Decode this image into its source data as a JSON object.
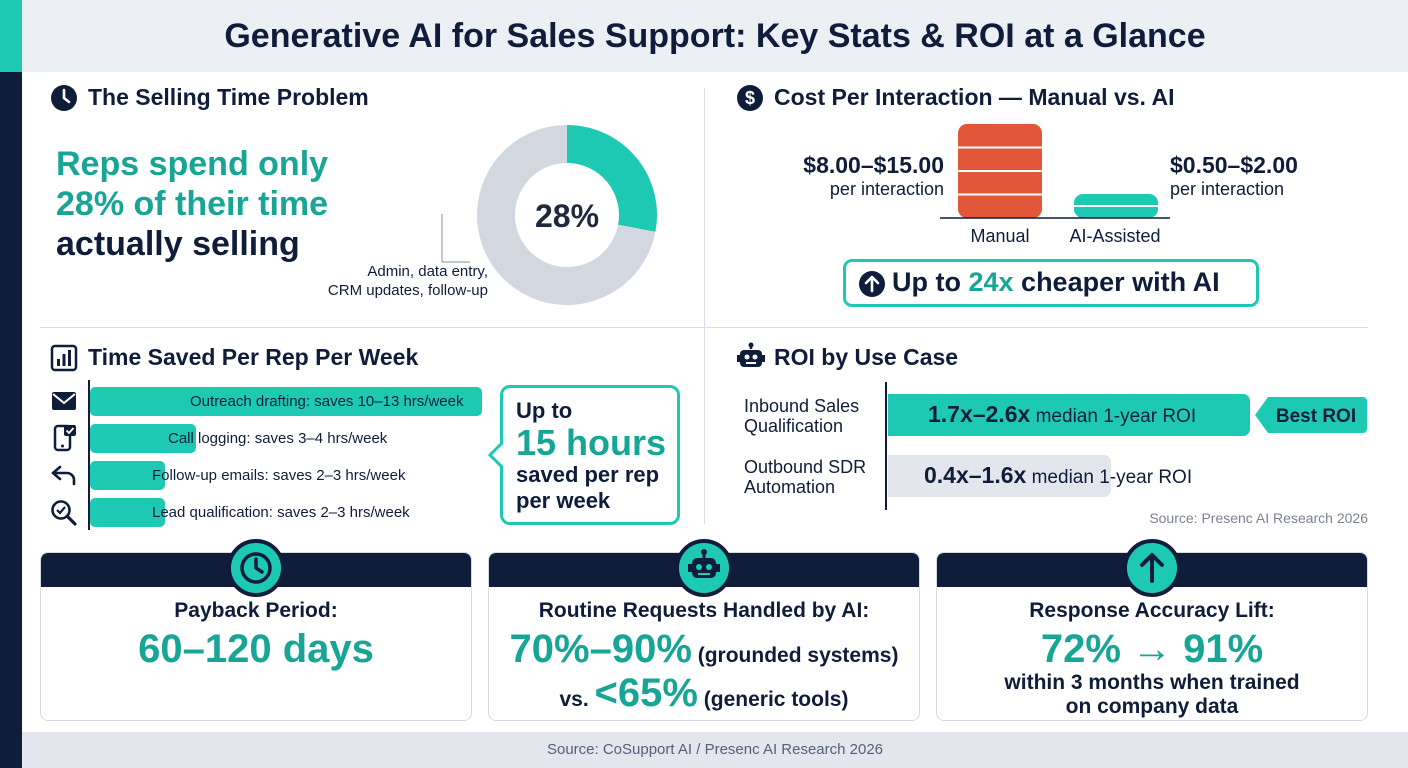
{
  "title": "Generative AI for Sales Support: Key Stats & ROI at a Glance",
  "selling_time": {
    "title": "The Selling Time Problem",
    "headline_line1": "Reps spend only",
    "headline_line2": "28% of their time",
    "headline_line3": "actually selling",
    "percent_label": "28%",
    "annotation_line1": "Admin, data entry,",
    "annotation_line2": "CRM updates, follow-up",
    "chart_data": {
      "type": "pie",
      "slices": [
        {
          "label": "Selling",
          "value": 28
        },
        {
          "label": "Admin, data entry, CRM updates, follow-up",
          "value": 72
        }
      ],
      "colors": [
        "#1ec9b4",
        "#d3d7df"
      ]
    }
  },
  "cost": {
    "title": "Cost Per Interaction — Manual vs. AI",
    "manual_value": "$8.00–$15.00",
    "manual_unit": "per interaction",
    "ai_value": "$0.50–$2.00",
    "ai_unit": "per interaction",
    "manual_label": "Manual",
    "ai_label": "AI-Assisted",
    "callout_pre": "Up to ",
    "callout_highlight": "24x",
    "callout_post": " cheaper with AI",
    "chart_data": {
      "type": "bar",
      "categories": [
        "Manual",
        "AI-Assisted"
      ],
      "ranges": [
        [
          8.0,
          15.0
        ],
        [
          0.5,
          2.0
        ]
      ],
      "colors": [
        "#e2573a",
        "#1ec9b4"
      ]
    }
  },
  "time_saved": {
    "title": "Time Saved Per Rep Per Week",
    "callout_line1": "Up to",
    "callout_line2": "15 hours",
    "callout_line3": "saved per rep",
    "callout_line4": "per week",
    "chart_data": {
      "type": "bar",
      "orientation": "horizontal",
      "categories": [
        "Outreach drafting: saves 10–13 hrs/week",
        "Call logging: saves 3–4 hrs/week",
        "Follow-up emails: saves 2–3 hrs/week",
        "Lead qualification: saves 2–3 hrs/week"
      ],
      "values": [
        13,
        3.5,
        2.5,
        2.5
      ],
      "icons": [
        "envelope-icon",
        "phone-check-icon",
        "reply-arrow-icon",
        "magnifier-check-icon"
      ]
    }
  },
  "roi": {
    "title": "ROI by Use Case",
    "row1_label_line1": "Inbound Sales",
    "row1_label_line2": "Qualification",
    "row1_value": "1.7x–2.6x",
    "row1_suffix": " median 1-year ROI",
    "row2_label_line1": "Outbound SDR",
    "row2_label_line2": "Automation",
    "row2_value": "0.4x–1.6x",
    "row2_suffix": " median 1-year ROI",
    "badge": "Best ROI",
    "source": "Source: Presenc AI Research 2026",
    "chart_data": {
      "type": "bar",
      "orientation": "horizontal",
      "categories": [
        "Inbound Sales Qualification",
        "Outbound SDR Automation"
      ],
      "ranges": [
        [
          1.7,
          2.6
        ],
        [
          0.4,
          1.6
        ]
      ],
      "colors": [
        "#1ec9b4",
        "#e3e6ec"
      ]
    }
  },
  "cards": {
    "payback_label": "Payback Period:",
    "payback_value": "60–120 days",
    "routine_label": "Routine Requests Handled by AI:",
    "routine_value1": "70%–90%",
    "routine_note1": " (grounded systems)",
    "routine_vs": "vs. ",
    "routine_value2": "<65%",
    "routine_note2": " (generic tools)",
    "accuracy_label": "Response Accuracy Lift:",
    "accuracy_value": "72% → 91%",
    "accuracy_note_line1": "within 3 months when trained",
    "accuracy_note_line2": "on company data"
  },
  "footer": "Source: CoSupport AI / Presenc AI Research 2026",
  "colors": {
    "navy": "#0f1d3a",
    "teal": "#1ec9b4",
    "teal_text": "#17a596",
    "orange": "#e2573a",
    "gray": "#d3d7df"
  }
}
